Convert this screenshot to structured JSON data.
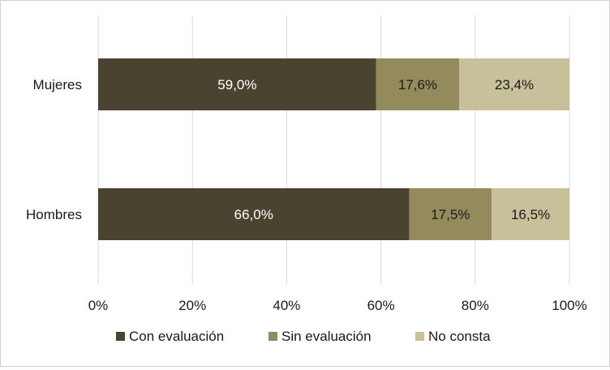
{
  "chart_data": {
    "type": "bar",
    "orientation": "horizontal",
    "stacked": true,
    "categories": [
      "Mujeres",
      "Hombres"
    ],
    "series": [
      {
        "name": "Con evaluación",
        "values": [
          59.0,
          66.0
        ],
        "labels": [
          "59,0%",
          "66,0%"
        ],
        "color": "#4a4330",
        "label_color": "#ffffff"
      },
      {
        "name": "Sin evaluación",
        "values": [
          17.6,
          17.5
        ],
        "labels": [
          "17,6%",
          "17,5%"
        ],
        "color": "#948b5c",
        "label_color": "#1a1a1a"
      },
      {
        "name": "No consta",
        "values": [
          23.4,
          16.5
        ],
        "labels": [
          "23,4%",
          "16,5%"
        ],
        "color": "#c7c09a",
        "label_color": "#1a1a1a"
      }
    ],
    "xlim": [
      0,
      100
    ],
    "xticks": [
      0,
      20,
      40,
      60,
      80,
      100
    ],
    "xtick_labels": [
      "0%",
      "20%",
      "40%",
      "60%",
      "80%",
      "100%"
    ],
    "grid": "vertical",
    "legend_position": "bottom"
  }
}
